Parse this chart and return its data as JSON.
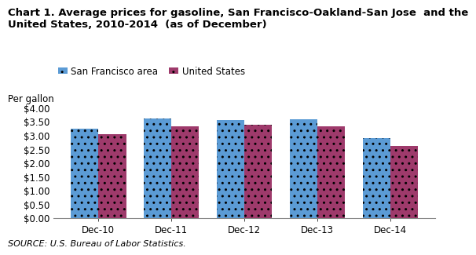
{
  "title": "Chart 1. Average prices for gasoline, San Francisco-Oakland-San Jose  and the\nUnited States, 2010-2014  (as of December)",
  "per_gallon": "Per gallon",
  "categories": [
    "Dec-10",
    "Dec-11",
    "Dec-12",
    "Dec-13",
    "Dec-14"
  ],
  "sf_values": [
    3.24,
    3.6,
    3.55,
    3.59,
    2.88
  ],
  "us_values": [
    3.04,
    3.32,
    3.38,
    3.33,
    2.6
  ],
  "sf_color": "#5B9BD5",
  "us_color": "#9E3A6B",
  "ylim": [
    0,
    4.0
  ],
  "yticks": [
    0.0,
    0.5,
    1.0,
    1.5,
    2.0,
    2.5,
    3.0,
    3.5,
    4.0
  ],
  "legend_sf": "San Francisco area",
  "legend_us": "United States",
  "source_text": "SOURCE: U.S. Bureau of Labor Statistics.",
  "bg_color": "#FFFFFF",
  "bar_width": 0.38,
  "title_fontsize": 9.5,
  "axis_fontsize": 8.5,
  "legend_fontsize": 8.5,
  "source_fontsize": 8.0
}
